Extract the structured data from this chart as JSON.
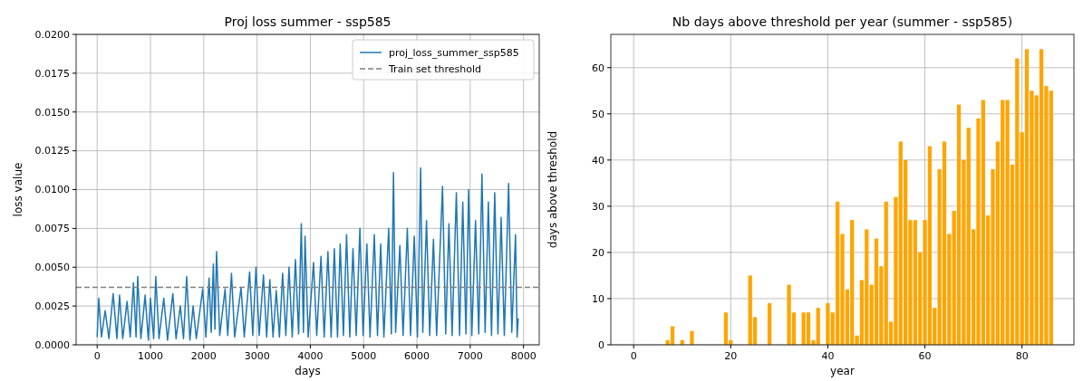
{
  "chart_data": [
    {
      "type": "line",
      "title": "Proj loss summer - ssp585",
      "xlabel": "days",
      "ylabel": "loss value",
      "xlim": [
        -395,
        8295
      ],
      "ylim": [
        0,
        0.02
      ],
      "xticks": [
        0,
        1000,
        2000,
        3000,
        4000,
        5000,
        6000,
        7000,
        8000
      ],
      "yticks": [
        {
          "value": 0,
          "label": "0.0000"
        },
        {
          "value": 0.0025,
          "label": "0.0025"
        },
        {
          "value": 0.005,
          "label": "0.0050"
        },
        {
          "value": 0.0075,
          "label": "0.0075"
        },
        {
          "value": 0.01,
          "label": "0.0100"
        },
        {
          "value": 0.0125,
          "label": "0.0125"
        },
        {
          "value": 0.015,
          "label": "0.0150"
        },
        {
          "value": 0.0175,
          "label": "0.0175"
        },
        {
          "value": 0.02,
          "label": "0.0200"
        }
      ],
      "grid": true,
      "legend": "top right",
      "line_style": "solid",
      "series": [
        {
          "name": "proj_loss_summer_ssp585",
          "color": "#1f77b4",
          "x": [
            0,
            30,
            80,
            150,
            220,
            300,
            370,
            420,
            480,
            560,
            620,
            680,
            730,
            760,
            820,
            900,
            960,
            1000,
            1060,
            1100,
            1160,
            1250,
            1320,
            1420,
            1480,
            1560,
            1620,
            1680,
            1740,
            1800,
            1860,
            1980,
            2040,
            2100,
            2140,
            2180,
            2210,
            2240,
            2300,
            2400,
            2450,
            2520,
            2580,
            2700,
            2760,
            2860,
            2920,
            2980,
            3040,
            3120,
            3180,
            3240,
            3300,
            3360,
            3420,
            3480,
            3540,
            3600,
            3660,
            3720,
            3780,
            3830,
            3870,
            3900,
            3960,
            4060,
            4120,
            4200,
            4260,
            4330,
            4390,
            4450,
            4510,
            4560,
            4620,
            4680,
            4740,
            4800,
            4860,
            4930,
            4990,
            5060,
            5120,
            5200,
            5260,
            5320,
            5380,
            5470,
            5520,
            5560,
            5600,
            5680,
            5740,
            5820,
            5880,
            5950,
            6010,
            6070,
            6110,
            6180,
            6240,
            6310,
            6370,
            6480,
            6540,
            6600,
            6660,
            6740,
            6800,
            6860,
            6920,
            6970,
            7030,
            7100,
            7160,
            7220,
            7280,
            7340,
            7400,
            7460,
            7520,
            7580,
            7640,
            7720,
            7780,
            7850,
            7880,
            7900
          ],
          "values": [
            0.0005,
            0.003,
            0.0005,
            0.0022,
            0.0004,
            0.0033,
            0.0004,
            0.0032,
            0.0004,
            0.0028,
            0.0005,
            0.004,
            0.0005,
            0.0044,
            0.0004,
            0.0032,
            0.0003,
            0.003,
            0.0004,
            0.0044,
            0.0004,
            0.003,
            0.0003,
            0.0033,
            0.0004,
            0.0025,
            0.0004,
            0.0044,
            0.0003,
            0.0025,
            0.0004,
            0.0036,
            0.0005,
            0.0043,
            0.0008,
            0.0052,
            0.001,
            0.006,
            0.0006,
            0.0036,
            0.0006,
            0.0046,
            0.0005,
            0.0037,
            0.0005,
            0.0047,
            0.0006,
            0.005,
            0.0006,
            0.0045,
            0.0005,
            0.0042,
            0.0005,
            0.0035,
            0.0005,
            0.0046,
            0.0006,
            0.005,
            0.0005,
            0.0055,
            0.0007,
            0.0078,
            0.0008,
            0.007,
            0.0005,
            0.0053,
            0.0006,
            0.0057,
            0.0005,
            0.006,
            0.0005,
            0.0062,
            0.0005,
            0.0065,
            0.0006,
            0.0071,
            0.0005,
            0.0062,
            0.0006,
            0.0075,
            0.0006,
            0.0065,
            0.0005,
            0.0071,
            0.0006,
            0.0065,
            0.0005,
            0.0075,
            0.0007,
            0.0111,
            0.0008,
            0.0064,
            0.0006,
            0.0075,
            0.0006,
            0.007,
            0.0005,
            0.0114,
            0.0008,
            0.008,
            0.0006,
            0.0068,
            0.0006,
            0.0102,
            0.0007,
            0.0078,
            0.0006,
            0.0098,
            0.0006,
            0.0092,
            0.0007,
            0.01,
            0.0006,
            0.008,
            0.0007,
            0.011,
            0.0008,
            0.0092,
            0.0006,
            0.0098,
            0.0007,
            0.0082,
            0.0006,
            0.0104,
            0.0008,
            0.0071,
            0.0005,
            0.0017
          ]
        }
      ],
      "ref_lines": [
        {
          "axis": "y",
          "value": 0.0037,
          "label": "Train set threshold",
          "color": "#808080",
          "line_style": "dashed"
        }
      ]
    },
    {
      "type": "bar",
      "title": "Nb days above threshold per year (summer - ssp585)",
      "xlabel": "year",
      "ylabel": "days above threshold",
      "xlim": [
        -4.7,
        90.7
      ],
      "ylim": [
        0,
        67.2
      ],
      "xticks": [
        0,
        20,
        40,
        60,
        80
      ],
      "yticks": [
        0,
        10,
        20,
        30,
        40,
        50,
        60
      ],
      "grid": true,
      "x": [
        0,
        1,
        2,
        3,
        4,
        5,
        6,
        7,
        8,
        9,
        10,
        11,
        12,
        13,
        14,
        15,
        16,
        17,
        18,
        19,
        20,
        21,
        22,
        23,
        24,
        25,
        26,
        27,
        28,
        29,
        30,
        31,
        32,
        33,
        34,
        35,
        36,
        37,
        38,
        39,
        40,
        41,
        42,
        43,
        44,
        45,
        46,
        47,
        48,
        49,
        50,
        51,
        52,
        53,
        54,
        55,
        56,
        57,
        58,
        59,
        60,
        61,
        62,
        63,
        64,
        65,
        66,
        67,
        68,
        69,
        70,
        71,
        72,
        73,
        74,
        75,
        76,
        77,
        78,
        79,
        80,
        81,
        82,
        83,
        84,
        85,
        86
      ],
      "color": "#ffa500",
      "values": [
        0,
        0,
        0,
        0,
        0,
        0,
        0,
        1,
        4,
        0,
        1,
        0,
        3,
        0,
        0,
        0,
        0,
        0,
        0,
        7,
        1,
        0,
        0,
        0,
        15,
        6,
        0,
        0,
        9,
        0,
        0,
        0,
        13,
        7,
        0,
        7,
        7,
        1,
        8,
        0,
        9,
        7,
        31,
        24,
        12,
        27,
        2,
        14,
        25,
        13,
        23,
        17,
        31,
        5,
        32,
        44,
        40,
        27,
        27,
        20,
        27,
        43,
        8,
        38,
        44,
        24,
        29,
        52,
        40,
        47,
        25,
        49,
        53,
        28,
        38,
        44,
        53,
        53,
        39,
        62,
        46,
        64,
        55,
        54,
        64,
        56,
        55
      ]
    }
  ]
}
